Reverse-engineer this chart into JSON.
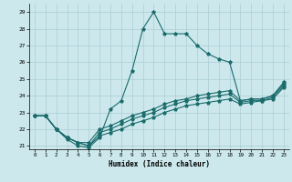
{
  "xlabel": "Humidex (Indice chaleur)",
  "bg_color": "#cce8ec",
  "grid_color": "#aacdd4",
  "line_color": "#1a6b6b",
  "xlim": [
    -0.5,
    23.5
  ],
  "ylim": [
    20.8,
    29.5
  ],
  "xticks": [
    0,
    1,
    2,
    3,
    4,
    5,
    6,
    7,
    8,
    9,
    10,
    11,
    12,
    13,
    14,
    15,
    16,
    17,
    18,
    19,
    20,
    21,
    22,
    23
  ],
  "yticks": [
    21,
    22,
    23,
    24,
    25,
    26,
    27,
    28,
    29
  ],
  "series": [
    [
      22.8,
      22.8,
      22.0,
      21.4,
      21.0,
      20.9,
      21.5,
      23.2,
      23.7,
      25.5,
      28.0,
      29.0,
      27.7,
      27.7,
      27.7,
      27.0,
      26.5,
      26.2,
      26.0,
      23.7,
      23.8,
      23.8,
      24.0,
      24.8
    ],
    [
      22.8,
      22.8,
      22.0,
      21.5,
      21.2,
      21.2,
      22.0,
      22.2,
      22.5,
      22.8,
      23.0,
      23.2,
      23.5,
      23.7,
      23.8,
      24.0,
      24.1,
      24.2,
      24.3,
      23.7,
      23.8,
      23.8,
      24.0,
      24.7
    ],
    [
      22.8,
      22.8,
      22.0,
      21.5,
      21.2,
      21.0,
      21.8,
      22.0,
      22.3,
      22.6,
      22.8,
      23.0,
      23.3,
      23.5,
      23.7,
      23.8,
      23.9,
      24.0,
      24.1,
      23.6,
      23.7,
      23.7,
      23.9,
      24.6
    ],
    [
      22.8,
      22.8,
      22.0,
      21.5,
      21.2,
      21.0,
      21.6,
      21.8,
      22.0,
      22.3,
      22.5,
      22.7,
      23.0,
      23.2,
      23.4,
      23.5,
      23.6,
      23.7,
      23.8,
      23.5,
      23.6,
      23.7,
      23.8,
      24.5
    ]
  ]
}
